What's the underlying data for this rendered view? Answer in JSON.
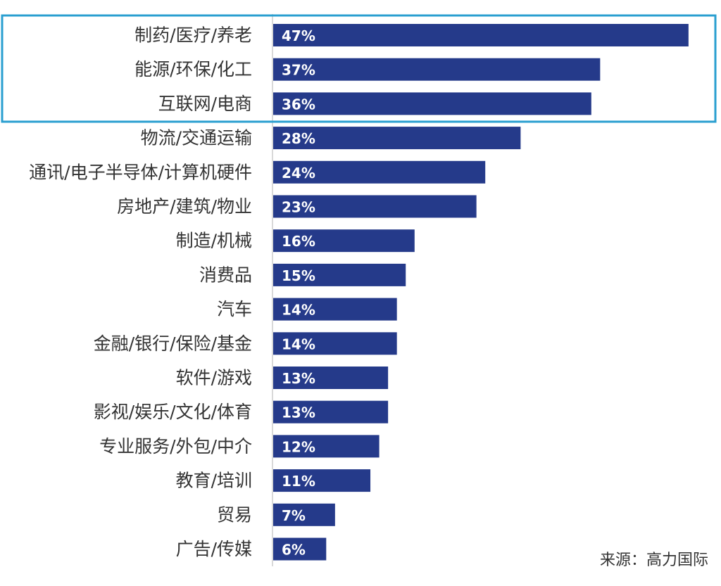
{
  "chart_data": {
    "type": "bar",
    "orientation": "horizontal",
    "categories": [
      "制药/医疗/养老",
      "能源/环保/化工",
      "互联网/电商",
      "物流/交通运输",
      "通讯/电子半导体/计算机硬件",
      "房地产/建筑/物业",
      "制造/机械",
      "消费品",
      "汽车",
      "金融/银行/保险/基金",
      "软件/游戏",
      "影视/娱乐/文化/体育",
      "专业服务/外包/中介",
      "教育/培训",
      "贸易",
      "广告/传媒"
    ],
    "values": [
      47,
      37,
      36,
      28,
      24,
      23,
      16,
      15,
      14,
      14,
      13,
      13,
      12,
      11,
      7,
      6
    ],
    "value_labels": [
      "47%",
      "37%",
      "36%",
      "28%",
      "24%",
      "23%",
      "16%",
      "15%",
      "14%",
      "14%",
      "13%",
      "13%",
      "12%",
      "11%",
      "7%",
      "6%"
    ],
    "unit": "%",
    "highlight": "top-3",
    "bar_color": "#253a8a",
    "highlight_color": "#2a9fd0",
    "source": "来源：高力国际"
  }
}
